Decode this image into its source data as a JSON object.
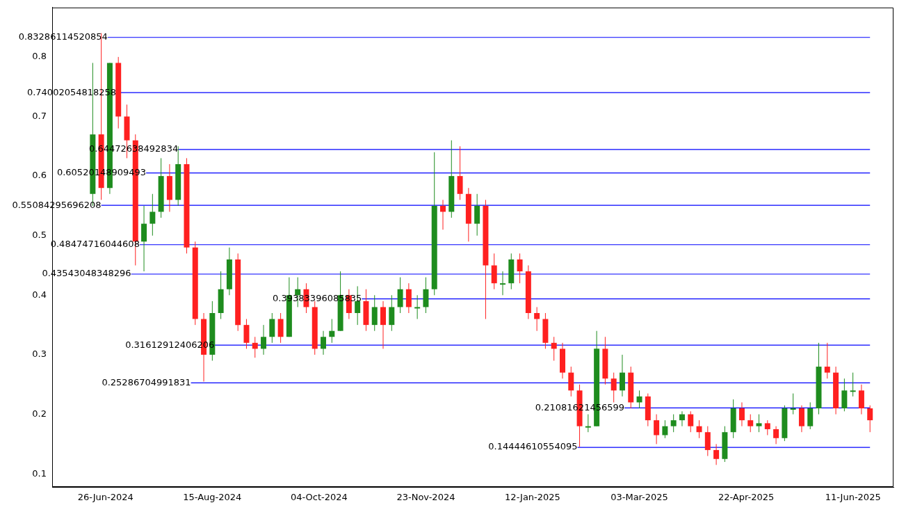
{
  "chart_data": {
    "type": "candlestick",
    "x": [
      "2024-06-20",
      "2024-06-24",
      "2024-06-28",
      "2024-07-02",
      "2024-07-06",
      "2024-07-10",
      "2024-07-14",
      "2024-07-18",
      "2024-07-22",
      "2024-07-26",
      "2024-07-30",
      "2024-08-03",
      "2024-08-07",
      "2024-08-11",
      "2024-08-15",
      "2024-08-19",
      "2024-08-23",
      "2024-08-27",
      "2024-08-31",
      "2024-09-04",
      "2024-09-08",
      "2024-09-12",
      "2024-09-16",
      "2024-09-20",
      "2024-09-24",
      "2024-09-28",
      "2024-10-02",
      "2024-10-06",
      "2024-10-10",
      "2024-10-14",
      "2024-10-18",
      "2024-10-22",
      "2024-10-26",
      "2024-10-30",
      "2024-11-03",
      "2024-11-07",
      "2024-11-11",
      "2024-11-15",
      "2024-11-19",
      "2024-11-23",
      "2024-11-27",
      "2024-12-01",
      "2024-12-05",
      "2024-12-09",
      "2024-12-13",
      "2024-12-17",
      "2024-12-21",
      "2024-12-25",
      "2024-12-29",
      "2025-01-02",
      "2025-01-06",
      "2025-01-10",
      "2025-01-14",
      "2025-01-18",
      "2025-01-22",
      "2025-01-26",
      "2025-01-30",
      "2025-02-03",
      "2025-02-07",
      "2025-02-11",
      "2025-02-15",
      "2025-02-19",
      "2025-02-23",
      "2025-02-27",
      "2025-03-03",
      "2025-03-07",
      "2025-03-11",
      "2025-03-15",
      "2025-03-19",
      "2025-03-23",
      "2025-03-27",
      "2025-03-31",
      "2025-04-04",
      "2025-04-08",
      "2025-04-12",
      "2025-04-16",
      "2025-04-20",
      "2025-04-24",
      "2025-04-28",
      "2025-05-02",
      "2025-05-06",
      "2025-05-10",
      "2025-05-14",
      "2025-05-18",
      "2025-05-22",
      "2025-05-26",
      "2025-05-30",
      "2025-06-03",
      "2025-06-07",
      "2025-06-11",
      "2025-06-15",
      "2025-06-19"
    ],
    "ohlc": [
      [
        0.57,
        0.79,
        0.55,
        0.67
      ],
      [
        0.67,
        0.84,
        0.56,
        0.58
      ],
      [
        0.58,
        0.79,
        0.57,
        0.79
      ],
      [
        0.79,
        0.8,
        0.68,
        0.7
      ],
      [
        0.7,
        0.72,
        0.63,
        0.66
      ],
      [
        0.66,
        0.67,
        0.45,
        0.49
      ],
      [
        0.49,
        0.55,
        0.44,
        0.52
      ],
      [
        0.52,
        0.57,
        0.5,
        0.54
      ],
      [
        0.54,
        0.63,
        0.53,
        0.6
      ],
      [
        0.6,
        0.62,
        0.54,
        0.56
      ],
      [
        0.56,
        0.65,
        0.55,
        0.62
      ],
      [
        0.62,
        0.63,
        0.47,
        0.48
      ],
      [
        0.48,
        0.49,
        0.35,
        0.36
      ],
      [
        0.36,
        0.37,
        0.255,
        0.3
      ],
      [
        0.3,
        0.39,
        0.29,
        0.37
      ],
      [
        0.37,
        0.44,
        0.36,
        0.41
      ],
      [
        0.41,
        0.48,
        0.4,
        0.46
      ],
      [
        0.46,
        0.47,
        0.34,
        0.35
      ],
      [
        0.35,
        0.36,
        0.31,
        0.32
      ],
      [
        0.32,
        0.33,
        0.295,
        0.31
      ],
      [
        0.31,
        0.35,
        0.3,
        0.33
      ],
      [
        0.33,
        0.37,
        0.32,
        0.36
      ],
      [
        0.36,
        0.37,
        0.32,
        0.33
      ],
      [
        0.33,
        0.43,
        0.33,
        0.4
      ],
      [
        0.4,
        0.43,
        0.38,
        0.41
      ],
      [
        0.41,
        0.42,
        0.37,
        0.38
      ],
      [
        0.38,
        0.39,
        0.3,
        0.31
      ],
      [
        0.31,
        0.34,
        0.3,
        0.33
      ],
      [
        0.33,
        0.36,
        0.32,
        0.34
      ],
      [
        0.34,
        0.44,
        0.34,
        0.4
      ],
      [
        0.4,
        0.41,
        0.36,
        0.37
      ],
      [
        0.37,
        0.415,
        0.35,
        0.39
      ],
      [
        0.39,
        0.41,
        0.34,
        0.35
      ],
      [
        0.35,
        0.4,
        0.34,
        0.38
      ],
      [
        0.38,
        0.39,
        0.31,
        0.35
      ],
      [
        0.35,
        0.4,
        0.34,
        0.38
      ],
      [
        0.38,
        0.43,
        0.37,
        0.41
      ],
      [
        0.41,
        0.42,
        0.37,
        0.38
      ],
      [
        0.38,
        0.4,
        0.36,
        0.38
      ],
      [
        0.38,
        0.43,
        0.37,
        0.41
      ],
      [
        0.41,
        0.64,
        0.4,
        0.55
      ],
      [
        0.55,
        0.56,
        0.51,
        0.54
      ],
      [
        0.54,
        0.66,
        0.53,
        0.6
      ],
      [
        0.6,
        0.65,
        0.56,
        0.57
      ],
      [
        0.57,
        0.58,
        0.49,
        0.52
      ],
      [
        0.52,
        0.57,
        0.5,
        0.55
      ],
      [
        0.55,
        0.56,
        0.36,
        0.45
      ],
      [
        0.45,
        0.47,
        0.41,
        0.42
      ],
      [
        0.42,
        0.44,
        0.4,
        0.42
      ],
      [
        0.42,
        0.47,
        0.41,
        0.46
      ],
      [
        0.46,
        0.47,
        0.42,
        0.44
      ],
      [
        0.44,
        0.45,
        0.36,
        0.37
      ],
      [
        0.37,
        0.38,
        0.34,
        0.36
      ],
      [
        0.36,
        0.37,
        0.31,
        0.32
      ],
      [
        0.32,
        0.33,
        0.29,
        0.31
      ],
      [
        0.31,
        0.32,
        0.26,
        0.27
      ],
      [
        0.27,
        0.28,
        0.23,
        0.24
      ],
      [
        0.24,
        0.25,
        0.145,
        0.18
      ],
      [
        0.18,
        0.2,
        0.17,
        0.18
      ],
      [
        0.18,
        0.34,
        0.18,
        0.31
      ],
      [
        0.31,
        0.33,
        0.25,
        0.26
      ],
      [
        0.26,
        0.27,
        0.22,
        0.24
      ],
      [
        0.24,
        0.3,
        0.23,
        0.27
      ],
      [
        0.27,
        0.28,
        0.21,
        0.22
      ],
      [
        0.22,
        0.24,
        0.21,
        0.23
      ],
      [
        0.23,
        0.235,
        0.18,
        0.19
      ],
      [
        0.19,
        0.2,
        0.15,
        0.165
      ],
      [
        0.165,
        0.19,
        0.16,
        0.18
      ],
      [
        0.18,
        0.2,
        0.17,
        0.19
      ],
      [
        0.19,
        0.205,
        0.18,
        0.2
      ],
      [
        0.2,
        0.205,
        0.17,
        0.18
      ],
      [
        0.18,
        0.19,
        0.16,
        0.17
      ],
      [
        0.17,
        0.18,
        0.13,
        0.14
      ],
      [
        0.14,
        0.15,
        0.115,
        0.125
      ],
      [
        0.125,
        0.18,
        0.12,
        0.17
      ],
      [
        0.17,
        0.225,
        0.16,
        0.21
      ],
      [
        0.21,
        0.22,
        0.18,
        0.19
      ],
      [
        0.19,
        0.2,
        0.17,
        0.18
      ],
      [
        0.18,
        0.2,
        0.17,
        0.185
      ],
      [
        0.185,
        0.19,
        0.165,
        0.175
      ],
      [
        0.175,
        0.18,
        0.15,
        0.16
      ],
      [
        0.16,
        0.215,
        0.155,
        0.21
      ],
      [
        0.21,
        0.235,
        0.2,
        0.21
      ],
      [
        0.21,
        0.215,
        0.17,
        0.18
      ],
      [
        0.18,
        0.22,
        0.175,
        0.21
      ],
      [
        0.21,
        0.32,
        0.2,
        0.28
      ],
      [
        0.28,
        0.32,
        0.26,
        0.27
      ],
      [
        0.27,
        0.28,
        0.2,
        0.21
      ],
      [
        0.21,
        0.26,
        0.205,
        0.24
      ],
      [
        0.24,
        0.27,
        0.23,
        0.24
      ],
      [
        0.24,
        0.25,
        0.2,
        0.21
      ],
      [
        0.21,
        0.215,
        0.17,
        0.19
      ]
    ],
    "colors": [
      "#1e8c1e",
      "#ff2020",
      "#1e8c1e",
      "#ff2020",
      "#ff2020",
      "#ff2020",
      "#1e8c1e",
      "#1e8c1e",
      "#1e8c1e",
      "#ff2020",
      "#1e8c1e",
      "#ff2020",
      "#ff2020",
      "#ff2020",
      "#1e8c1e",
      "#1e8c1e",
      "#1e8c1e",
      "#ff2020",
      "#ff2020",
      "#ff2020",
      "#1e8c1e",
      "#1e8c1e",
      "#ff2020",
      "#1e8c1e",
      "#1e8c1e",
      "#ff2020",
      "#ff2020",
      "#1e8c1e",
      "#1e8c1e",
      "#1e8c1e",
      "#ff2020",
      "#1e8c1e",
      "#ff2020",
      "#1e8c1e",
      "#ff2020",
      "#1e8c1e",
      "#1e8c1e",
      "#ff2020",
      "#1e8c1e",
      "#1e8c1e",
      "#1e8c1e",
      "#ff2020",
      "#1e8c1e",
      "#ff2020",
      "#ff2020",
      "#1e8c1e",
      "#ff2020",
      "#ff2020",
      "#1e8c1e",
      "#1e8c1e",
      "#ff2020",
      "#ff2020",
      "#ff2020",
      "#ff2020",
      "#ff2020",
      "#ff2020",
      "#ff2020",
      "#ff2020",
      "#1e8c1e",
      "#1e8c1e",
      "#ff2020",
      "#ff2020",
      "#1e8c1e",
      "#ff2020",
      "#1e8c1e",
      "#ff2020",
      "#ff2020",
      "#1e8c1e",
      "#1e8c1e",
      "#1e8c1e",
      "#ff2020",
      "#ff2020",
      "#ff2020",
      "#ff2020",
      "#1e8c1e",
      "#1e8c1e",
      "#ff2020",
      "#ff2020",
      "#1e8c1e",
      "#ff2020",
      "#ff2020",
      "#1e8c1e",
      "#1e8c1e",
      "#ff2020",
      "#1e8c1e",
      "#1e8c1e",
      "#ff2020",
      "#ff2020",
      "#1e8c1e",
      "#1e8c1e",
      "#ff2020",
      "#ff2020"
    ],
    "xlim": [
      "2024-06-01",
      "2025-06-30"
    ],
    "xticks": [
      {
        "value": "2024-06-26",
        "label": "26-Jun-2024"
      },
      {
        "value": "2024-08-15",
        "label": "15-Aug-2024"
      },
      {
        "value": "2024-10-04",
        "label": "04-Oct-2024"
      },
      {
        "value": "2024-11-23",
        "label": "23-Nov-2024"
      },
      {
        "value": "2025-01-12",
        "label": "12-Jan-2025"
      },
      {
        "value": "2025-03-03",
        "label": "03-Mar-2025"
      },
      {
        "value": "2025-04-22",
        "label": "22-Apr-2025"
      },
      {
        "value": "2025-06-11",
        "label": "11-Jun-2025"
      }
    ],
    "ylim": [
      0.078,
      0.883
    ],
    "yticks": [
      0.1,
      0.2,
      0.3,
      0.4,
      0.5,
      0.6,
      0.7,
      0.8
    ],
    "ref_lines": [
      {
        "axis": "y",
        "value": 0.83286114520854,
        "color": "#0000ff"
      },
      {
        "axis": "y",
        "value": 0.74002054818258,
        "color": "#0000ff"
      },
      {
        "axis": "y",
        "value": 0.64472638492834,
        "color": "#0000ff"
      },
      {
        "axis": "y",
        "value": 0.60520148909493,
        "color": "#0000ff"
      },
      {
        "axis": "y",
        "value": 0.55084295696208,
        "color": "#0000ff"
      },
      {
        "axis": "y",
        "value": 0.48474716044608,
        "color": "#0000ff"
      },
      {
        "axis": "y",
        "value": 0.43543048348296,
        "color": "#0000ff"
      },
      {
        "axis": "y",
        "value": 0.39383396085835,
        "color": "#0000ff"
      },
      {
        "axis": "y",
        "value": 0.31612912406206,
        "color": "#0000ff"
      },
      {
        "axis": "y",
        "value": 0.25286704991831,
        "color": "#0000ff"
      },
      {
        "axis": "y",
        "value": 0.21081621456599,
        "color": "#0000ff"
      },
      {
        "axis": "y",
        "value": 0.14444610554095,
        "color": "#0000ff"
      }
    ],
    "annotations": [
      {
        "text": "0.83286114520854",
        "x": "2024-06-27",
        "y": 0.83286114520854
      },
      {
        "text": "0.74002054818258",
        "x": "2024-07-01",
        "y": 0.74002054818258
      },
      {
        "text": "0.64472638492834",
        "x": "2024-07-30",
        "y": 0.64472638492834
      },
      {
        "text": "0.60520148909493",
        "x": "2024-07-15",
        "y": 0.60520148909493
      },
      {
        "text": "0.55084295696208",
        "x": "2024-06-24",
        "y": 0.55084295696208
      },
      {
        "text": "0.48474716044608",
        "x": "2024-07-12",
        "y": 0.48474716044608
      },
      {
        "text": "0.43543048348296",
        "x": "2024-07-08",
        "y": 0.43543048348296
      },
      {
        "text": "0.39383396085835",
        "x": "2024-10-24",
        "y": 0.39383396085835
      },
      {
        "text": "0.31612912406206",
        "x": "2024-08-16",
        "y": 0.31612912406206
      },
      {
        "text": "0.25286704991831",
        "x": "2024-08-05",
        "y": 0.25286704991831
      },
      {
        "text": "0.21081621456599",
        "x": "2025-02-24",
        "y": 0.21081621456599
      },
      {
        "text": "0.14444610554095",
        "x": "2025-02-02",
        "y": 0.14444610554095
      }
    ]
  }
}
